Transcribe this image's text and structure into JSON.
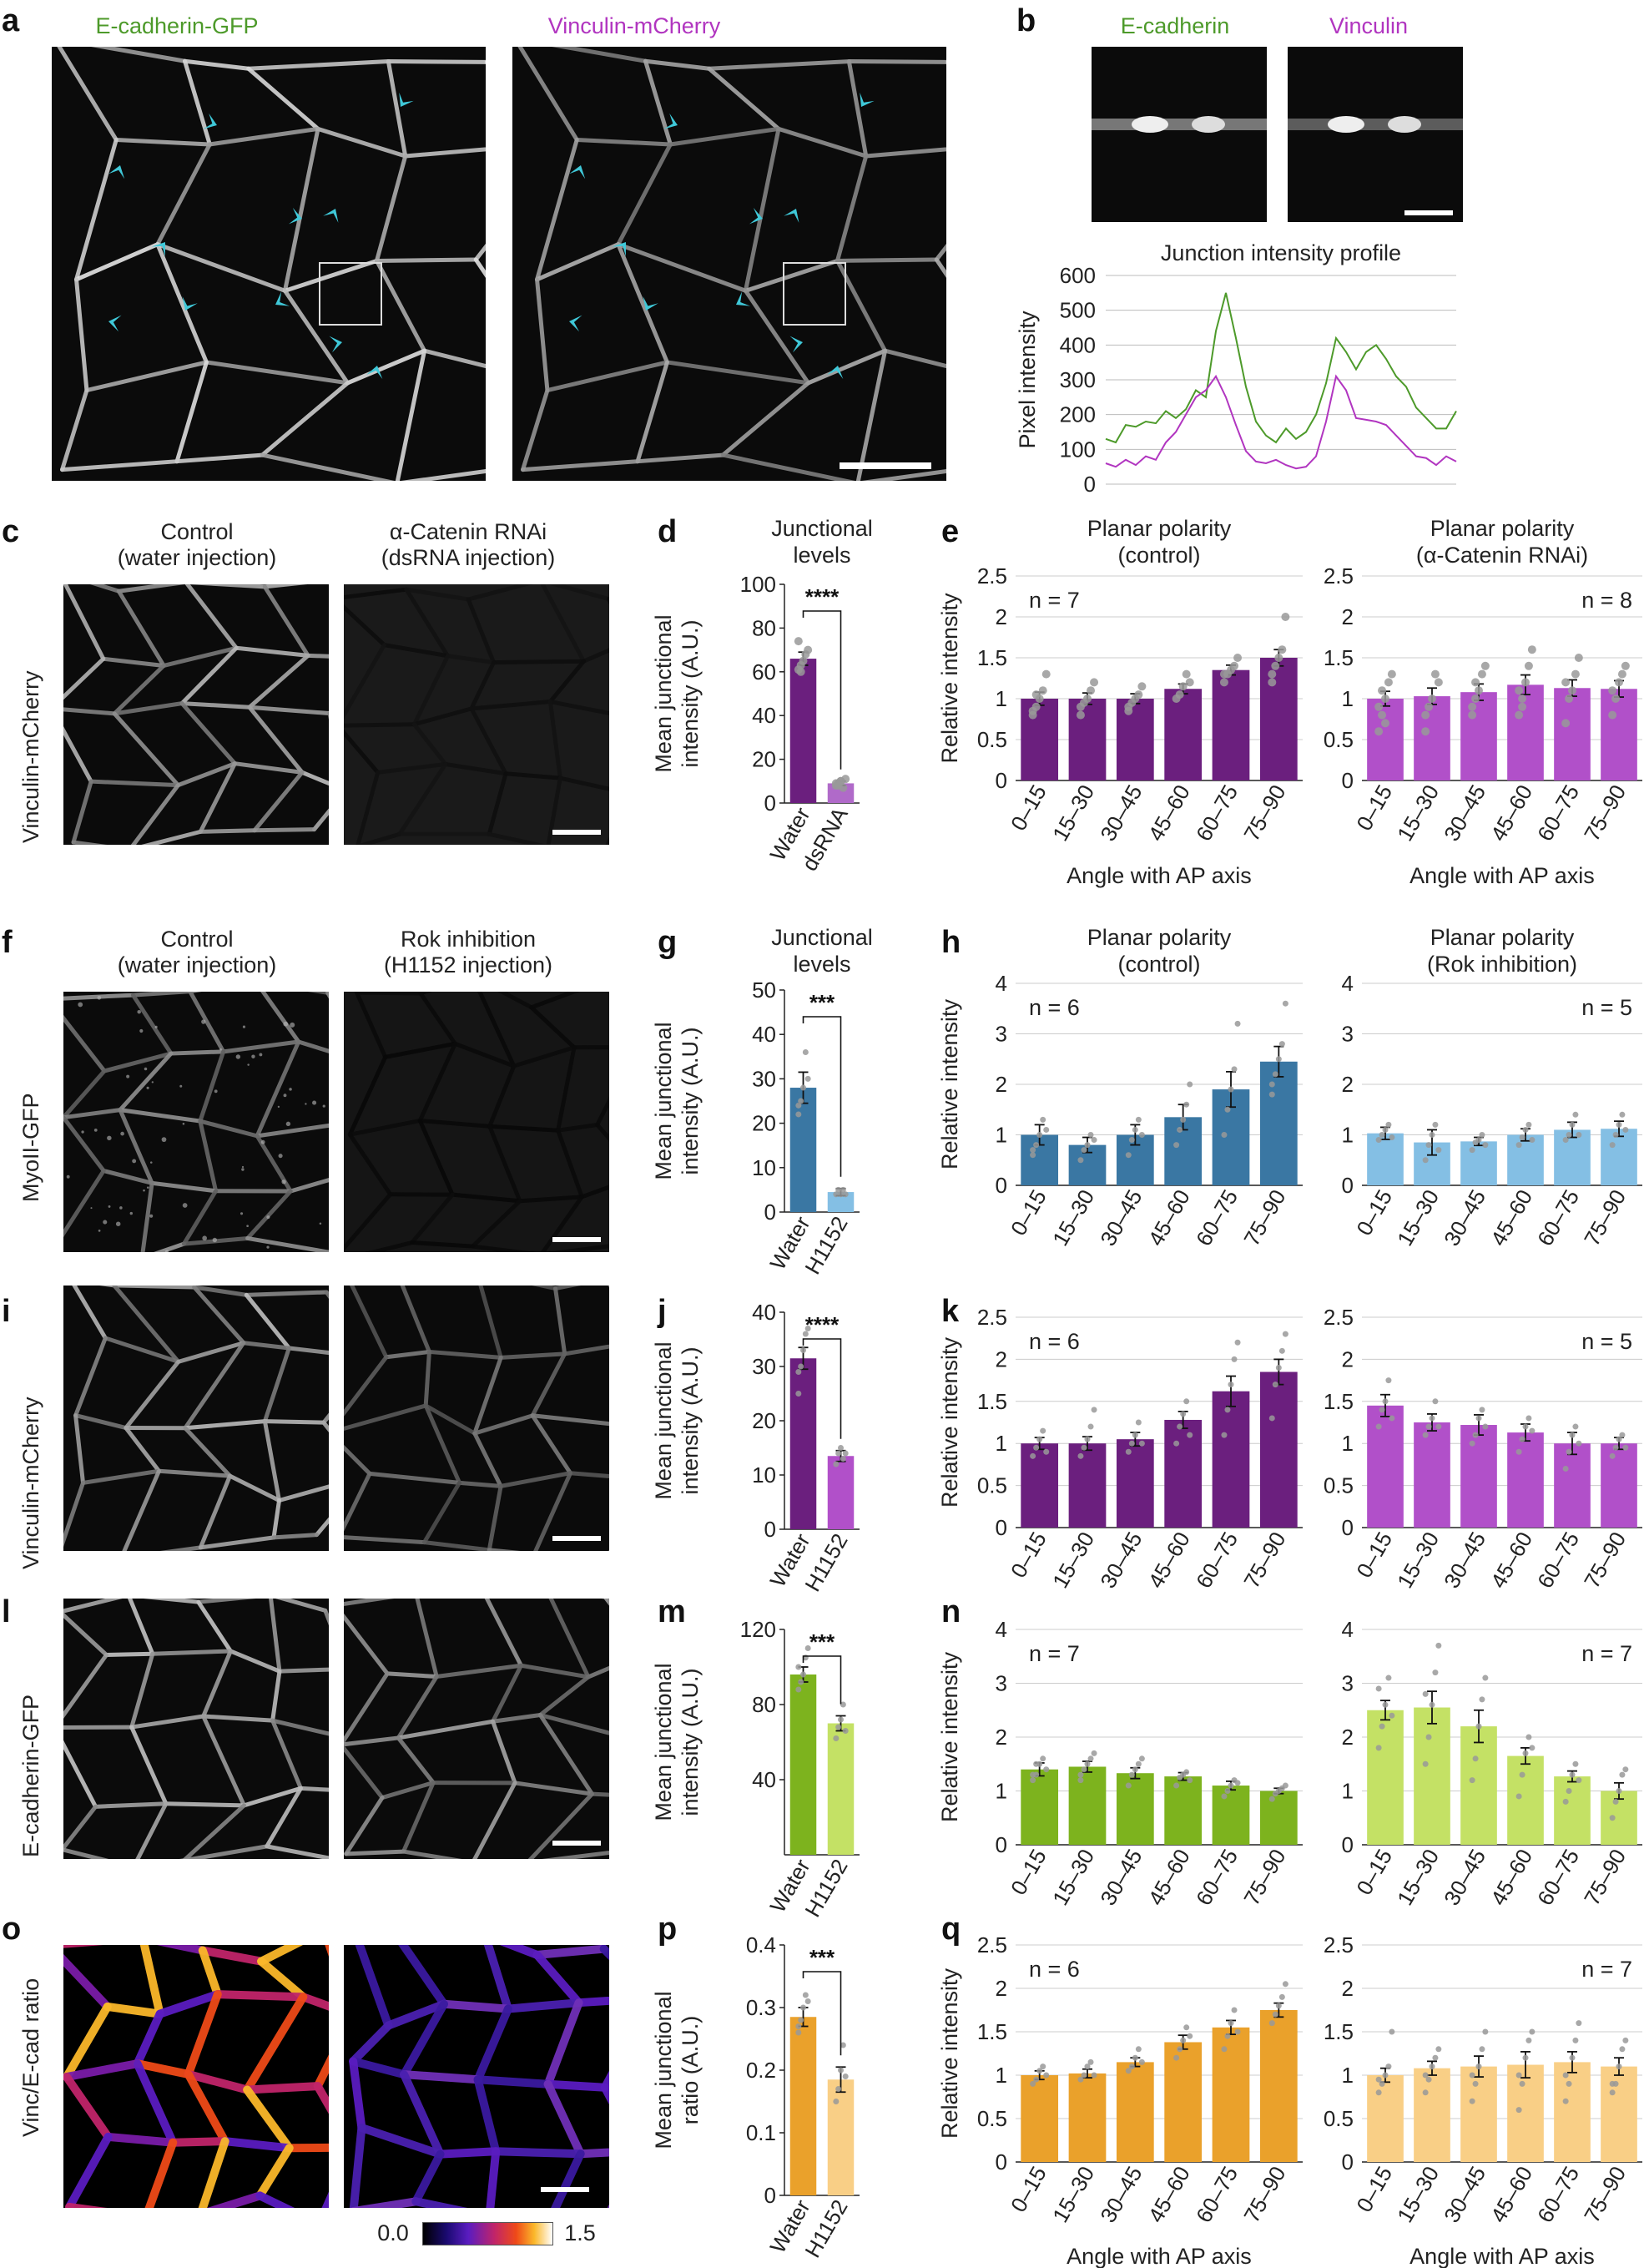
{
  "panel_letters": {
    "a": "a",
    "b": "b",
    "c": "c",
    "d": "d",
    "e": "e",
    "f": "f",
    "g": "g",
    "h": "h",
    "i": "i",
    "j": "j",
    "k": "k",
    "l": "l",
    "m": "m",
    "n": "n",
    "o": "o",
    "p": "p",
    "q": "q"
  },
  "labels": {
    "ecad_gfp": "E-cadherin-GFP",
    "vinc_mcherry": "Vinculin-mCherry",
    "ecad": "E-cadherin",
    "vinc": "Vinculin",
    "control_water": "Control\n(water injection)",
    "acat_rnai": "α-Catenin RNAi\n(dsRNA injection)",
    "rok_inhib": "Rok inhibition\n(H1152 injection)",
    "myoII_gfp": "MyoII-GFP",
    "vinc_ecad_ratio": "Vinc/E-cad ratio",
    "colorbar_min": "0.0",
    "colorbar_max": "1.5"
  },
  "colors": {
    "ecad": "#4d9a2a",
    "vinc": "#b135c0",
    "cyan": "#3fc8d8"
  },
  "chart_data": {
    "b": {
      "type": "line",
      "title": "Junction intensity profile",
      "ylabel": "Pixel intensity",
      "ylim": [
        0,
        600
      ],
      "yticks": [
        0,
        100,
        200,
        300,
        400,
        500,
        600
      ],
      "series": [
        {
          "name": "E-cadherin",
          "color": "#4d9a2a",
          "values": [
            130,
            120,
            170,
            165,
            180,
            175,
            210,
            190,
            215,
            270,
            250,
            440,
            550,
            420,
            280,
            180,
            140,
            120,
            160,
            130,
            150,
            200,
            290,
            420,
            380,
            330,
            380,
            400,
            360,
            310,
            280,
            220,
            190,
            160,
            160,
            210
          ]
        },
        {
          "name": "Vinculin",
          "color": "#b135c0",
          "values": [
            60,
            50,
            70,
            55,
            80,
            70,
            120,
            150,
            200,
            250,
            270,
            310,
            250,
            170,
            95,
            65,
            60,
            70,
            55,
            45,
            50,
            80,
            180,
            310,
            270,
            190,
            185,
            180,
            170,
            140,
            110,
            80,
            75,
            55,
            80,
            65
          ]
        }
      ]
    },
    "d": {
      "type": "bar",
      "title": "Junctional\nlevels",
      "ylabel": "Mean junctional\nintensity (A.U.)",
      "categories": [
        "Water",
        "dsRNA"
      ],
      "values": [
        66,
        9
      ],
      "errors": [
        3,
        1
      ],
      "colors": [
        "#6b1f7e",
        "#b06ac9"
      ],
      "ylim": [
        0,
        100
      ],
      "yticks": [
        0,
        20,
        40,
        60,
        80,
        100
      ],
      "sig": "****",
      "points": [
        [
          61,
          63,
          65,
          68,
          70,
          74,
          60
        ],
        [
          8,
          9,
          10,
          7,
          11,
          9,
          8,
          10
        ]
      ]
    },
    "g": {
      "type": "bar",
      "title": "Junctional\nlevels",
      "ylabel": "Mean junctional\nintensity (A.U.)",
      "categories": [
        "Water",
        "H1152"
      ],
      "values": [
        28,
        4.5
      ],
      "errors": [
        3.5,
        0.8
      ],
      "colors": [
        "#3a77a3",
        "#84bfe4"
      ],
      "ylim": [
        0,
        50
      ],
      "yticks": [
        0,
        10,
        20,
        30,
        40,
        50
      ],
      "sig": "***",
      "points": [
        [
          22,
          25,
          28,
          36,
          30,
          24
        ],
        [
          4,
          5,
          4,
          5,
          4
        ]
      ]
    },
    "j": {
      "type": "bar",
      "ylabel": "Mean junctional\nintensity (A.U.)",
      "categories": [
        "Water",
        "H1152"
      ],
      "values": [
        31.5,
        13.5
      ],
      "errors": [
        2,
        1
      ],
      "colors": [
        "#6b1f7e",
        "#b150c9"
      ],
      "ylim": [
        0,
        40
      ],
      "yticks": [
        0,
        10,
        20,
        30,
        40
      ],
      "sig": "****",
      "points": [
        [
          25,
          30,
          33,
          36,
          37,
          29
        ],
        [
          12,
          14,
          15,
          13,
          14
        ]
      ]
    },
    "m": {
      "type": "bar",
      "ylabel": "Mean junctional\nintensity (A.U.)",
      "categories": [
        "Water",
        "H1152"
      ],
      "values": [
        96,
        70
      ],
      "errors": [
        4,
        4
      ],
      "colors": [
        "#7db31e",
        "#c4e165"
      ],
      "ylim": [
        0,
        120
      ],
      "yticks": [
        40,
        80,
        120
      ],
      "sig": "***",
      "points": [
        [
          88,
          92,
          96,
          105,
          110,
          100
        ],
        [
          62,
          68,
          72,
          80,
          66
        ]
      ]
    },
    "p": {
      "type": "bar",
      "ylabel": "Mean junctional\nratio (A.U.)",
      "categories": [
        "Water",
        "H1152"
      ],
      "values": [
        0.285,
        0.185
      ],
      "errors": [
        0.015,
        0.02
      ],
      "colors": [
        "#eaa12b",
        "#f9cf86"
      ],
      "ylim": [
        0,
        0.4
      ],
      "yticks": [
        0,
        0.1,
        0.2,
        0.3,
        0.4
      ],
      "sig": "***",
      "points": [
        [
          0.26,
          0.28,
          0.3,
          0.32,
          0.31,
          0.27
        ],
        [
          0.15,
          0.17,
          0.2,
          0.24,
          0.19
        ]
      ]
    },
    "e_ctrl": {
      "type": "bar",
      "title": "Planar polarity\n(control)",
      "ylabel": "Relative intensity",
      "n": "n = 7",
      "categories": [
        "0–15",
        "15–30",
        "30–45",
        "45–60",
        "60–75",
        "75–90"
      ],
      "values": [
        1.0,
        1.0,
        1.0,
        1.12,
        1.35,
        1.5
      ],
      "errors": [
        0.08,
        0.07,
        0.06,
        0.06,
        0.06,
        0.1
      ],
      "color": "#6b1f7e",
      "ylim": [
        0,
        2.5
      ],
      "yticks": [
        0,
        0.5,
        1,
        1.5,
        2,
        2.5
      ],
      "points": [
        [
          0.8,
          0.9,
          1.0,
          1.1,
          1.3,
          0.85,
          1.05
        ],
        [
          0.8,
          0.95,
          1.0,
          1.1,
          1.2,
          0.9
        ],
        [
          0.85,
          0.95,
          1.0,
          1.05,
          1.15,
          0.9
        ],
        [
          1.0,
          1.05,
          1.15,
          1.3,
          1.2
        ],
        [
          1.2,
          1.3,
          1.35,
          1.4,
          1.5,
          1.3
        ],
        [
          1.2,
          1.4,
          1.5,
          1.6,
          2.0,
          1.3
        ]
      ]
    },
    "e_rnai": {
      "type": "bar",
      "title": "Planar polarity\n(α-Catenin RNAi)",
      "n": "n =  8",
      "categories": [
        "0–15",
        "15–30",
        "30–45",
        "45–60",
        "60–75",
        "75–90"
      ],
      "values": [
        1.0,
        1.03,
        1.08,
        1.17,
        1.13,
        1.12
      ],
      "errors": [
        0.09,
        0.1,
        0.1,
        0.12,
        0.1,
        0.1
      ],
      "color": "#b150c9",
      "ylim": [
        0,
        2.5
      ],
      "yticks": [
        0,
        0.5,
        1,
        1.5,
        2,
        2.5
      ],
      "points": [
        [
          0.6,
          0.8,
          1.0,
          1.2,
          1.3,
          0.9,
          1.1,
          0.7
        ],
        [
          0.6,
          0.9,
          1.0,
          1.3,
          1.2,
          0.8
        ],
        [
          0.8,
          1.0,
          1.1,
          1.3,
          1.4,
          0.9,
          1.2
        ],
        [
          0.8,
          1.0,
          1.2,
          1.4,
          1.6,
          1.1,
          0.9
        ],
        [
          0.7,
          1.0,
          1.1,
          1.3,
          1.5,
          1.2
        ],
        [
          0.8,
          1.0,
          1.2,
          1.3,
          1.4,
          1.1
        ]
      ]
    },
    "h_ctrl": {
      "type": "bar",
      "title": "Planar polarity\n(control)",
      "ylabel": "Relative intensity",
      "n": "n = 6",
      "categories": [
        "0–15",
        "15–30",
        "30–45",
        "45–60",
        "60–75",
        "75–90"
      ],
      "values": [
        1.0,
        0.8,
        1.0,
        1.35,
        1.9,
        2.45
      ],
      "errors": [
        0.2,
        0.15,
        0.2,
        0.25,
        0.35,
        0.3
      ],
      "color": "#3a77a3",
      "ylim": [
        0,
        4
      ],
      "yticks": [
        0,
        1,
        2,
        3,
        4
      ],
      "points": [
        [
          0.6,
          0.8,
          1.0,
          1.3,
          1.1,
          0.7
        ],
        [
          0.5,
          0.7,
          0.8,
          1.0,
          0.9
        ],
        [
          0.6,
          0.9,
          1.1,
          1.3,
          1.0
        ],
        [
          0.8,
          1.1,
          1.3,
          1.6,
          2.0
        ],
        [
          1.0,
          1.5,
          1.9,
          2.3,
          3.2
        ],
        [
          1.8,
          2.2,
          2.5,
          2.8,
          3.6,
          2.0
        ]
      ]
    },
    "h_rok": {
      "type": "bar",
      "title": "Planar polarity\n(Rok inhibition)",
      "n": "n = 5",
      "categories": [
        "0–15",
        "15–30",
        "30–45",
        "45–60",
        "60–75",
        "75–90"
      ],
      "values": [
        1.03,
        0.85,
        0.87,
        1.0,
        1.1,
        1.12
      ],
      "errors": [
        0.12,
        0.25,
        0.08,
        0.12,
        0.15,
        0.15
      ],
      "color": "#84bfe4",
      "ylim": [
        0,
        4
      ],
      "yticks": [
        0,
        1,
        2,
        3,
        4
      ],
      "points": [
        [
          0.9,
          1.0,
          1.1,
          1.2,
          0.95
        ],
        [
          0.5,
          0.8,
          1.0,
          1.2,
          0.7
        ],
        [
          0.7,
          0.85,
          0.9,
          1.0,
          0.8
        ],
        [
          0.8,
          0.95,
          1.1,
          1.2,
          0.9
        ],
        [
          0.9,
          1.0,
          1.2,
          1.4,
          1.0
        ],
        [
          0.8,
          1.0,
          1.2,
          1.4,
          1.1
        ]
      ]
    },
    "k_ctrl": {
      "type": "bar",
      "ylabel": "Relative intensity",
      "n": "n = 6",
      "categories": [
        "0–15",
        "15–30",
        "30–45",
        "45–60",
        "60–75",
        "75–90"
      ],
      "values": [
        1.0,
        1.0,
        1.05,
        1.28,
        1.62,
        1.85
      ],
      "errors": [
        0.07,
        0.08,
        0.08,
        0.1,
        0.18,
        0.15
      ],
      "color": "#6b1f7e",
      "ylim": [
        0,
        2.5
      ],
      "yticks": [
        0,
        0.5,
        1,
        1.5,
        2,
        2.5
      ],
      "points": [
        [
          0.85,
          0.95,
          1.05,
          1.15,
          0.9
        ],
        [
          0.85,
          0.95,
          1.05,
          1.2,
          1.4
        ],
        [
          0.9,
          1.0,
          1.1,
          1.25,
          1.0
        ],
        [
          1.0,
          1.2,
          1.35,
          1.5,
          1.1
        ],
        [
          1.1,
          1.4,
          1.7,
          2.0,
          2.2
        ],
        [
          1.3,
          1.7,
          1.9,
          2.1,
          2.3
        ]
      ]
    },
    "k_rok": {
      "type": "bar",
      "n": "n = 5",
      "categories": [
        "0–15",
        "15–30",
        "30–45",
        "45–60",
        "60–75",
        "75–90"
      ],
      "values": [
        1.45,
        1.25,
        1.22,
        1.13,
        1.0,
        1.0
      ],
      "errors": [
        0.13,
        0.1,
        0.12,
        0.1,
        0.13,
        0.07
      ],
      "color": "#b150c9",
      "ylim": [
        0,
        2.5
      ],
      "yticks": [
        0,
        0.5,
        1,
        1.5,
        2,
        2.5
      ],
      "points": [
        [
          1.2,
          1.4,
          1.5,
          1.75,
          1.3
        ],
        [
          1.1,
          1.2,
          1.3,
          1.5,
          1.2
        ],
        [
          1.0,
          1.1,
          1.3,
          1.4,
          1.2
        ],
        [
          0.9,
          1.05,
          1.2,
          1.3,
          1.15
        ],
        [
          0.7,
          0.9,
          1.1,
          1.2,
          1.0
        ],
        [
          0.85,
          0.95,
          1.05,
          1.1,
          0.95
        ]
      ]
    },
    "n_ctrl": {
      "type": "bar",
      "ylabel": "Relative intensity",
      "n": "n = 7",
      "categories": [
        "0–15",
        "15–30",
        "30–45",
        "45–60",
        "60–75",
        "75–90"
      ],
      "values": [
        1.4,
        1.45,
        1.33,
        1.27,
        1.1,
        1.0
      ],
      "errors": [
        0.12,
        0.1,
        0.1,
        0.07,
        0.08,
        0.05
      ],
      "color": "#7db31e",
      "ylim": [
        0,
        4
      ],
      "yticks": [
        0,
        1,
        2,
        3,
        4
      ],
      "points": [
        [
          1.2,
          1.3,
          1.5,
          1.6,
          1.4,
          1.3,
          1.5
        ],
        [
          1.2,
          1.4,
          1.5,
          1.6,
          1.7,
          1.3
        ],
        [
          1.1,
          1.3,
          1.4,
          1.5,
          1.6
        ],
        [
          1.1,
          1.25,
          1.3,
          1.35,
          1.2
        ],
        [
          0.9,
          1.0,
          1.1,
          1.2,
          1.15
        ],
        [
          0.85,
          0.95,
          1.0,
          1.05,
          1.1
        ]
      ]
    },
    "n_rok": {
      "type": "bar",
      "n": "n = 7",
      "categories": [
        "0–15",
        "15–30",
        "30–45",
        "45–60",
        "60–75",
        "75–90"
      ],
      "values": [
        2.5,
        2.55,
        2.2,
        1.65,
        1.27,
        1.0
      ],
      "errors": [
        0.18,
        0.3,
        0.3,
        0.15,
        0.1,
        0.15
      ],
      "color": "#c4e165",
      "ylim": [
        0,
        4
      ],
      "yticks": [
        0,
        1,
        2,
        3,
        4
      ],
      "points": [
        [
          1.8,
          2.2,
          2.6,
          3.1,
          2.4,
          2.9
        ],
        [
          1.5,
          2.0,
          2.6,
          3.2,
          3.7,
          2.8
        ],
        [
          1.2,
          1.6,
          2.2,
          2.7,
          3.1
        ],
        [
          0.9,
          1.3,
          1.7,
          2.0,
          1.8
        ],
        [
          0.8,
          1.0,
          1.3,
          1.5,
          1.2
        ],
        [
          0.5,
          0.8,
          1.0,
          1.3,
          1.4
        ]
      ]
    },
    "q_ctrl": {
      "type": "bar",
      "ylabel": "Relative intensity",
      "n": "n = 6",
      "categories": [
        "0–15",
        "15–30",
        "30–45",
        "45–60",
        "60–75",
        "75–90"
      ],
      "values": [
        1.0,
        1.02,
        1.15,
        1.38,
        1.55,
        1.75
      ],
      "errors": [
        0.05,
        0.05,
        0.05,
        0.08,
        0.08,
        0.08
      ],
      "color": "#eaa12b",
      "ylim": [
        0,
        2.5
      ],
      "yticks": [
        0,
        0.5,
        1,
        1.5,
        2,
        2.5
      ],
      "points": [
        [
          0.9,
          0.95,
          1.05,
          1.1,
          1.0
        ],
        [
          0.95,
          1.0,
          1.1,
          1.15,
          1.0
        ],
        [
          1.05,
          1.1,
          1.2,
          1.3,
          1.15
        ],
        [
          1.2,
          1.3,
          1.4,
          1.55,
          1.45
        ],
        [
          1.3,
          1.45,
          1.6,
          1.75,
          1.5
        ],
        [
          1.6,
          1.7,
          1.8,
          1.9,
          2.05
        ]
      ]
    },
    "q_rok": {
      "type": "bar",
      "n": "n = 7",
      "categories": [
        "0–15",
        "15–30",
        "30–45",
        "45–60",
        "60–75",
        "75–90"
      ],
      "values": [
        1.0,
        1.08,
        1.1,
        1.12,
        1.15,
        1.1
      ],
      "errors": [
        0.08,
        0.08,
        0.12,
        0.15,
        0.12,
        0.1
      ],
      "color": "#f9cf86",
      "ylim": [
        0,
        2.5
      ],
      "yticks": [
        0,
        0.5,
        1,
        1.5,
        2,
        2.5
      ],
      "points": [
        [
          0.8,
          0.9,
          1.0,
          1.1,
          1.5,
          0.95
        ],
        [
          0.8,
          0.95,
          1.1,
          1.2,
          1.3,
          1.0
        ],
        [
          0.7,
          0.9,
          1.1,
          1.3,
          1.5,
          1.0
        ],
        [
          0.6,
          0.9,
          1.2,
          1.4,
          1.5,
          1.0
        ],
        [
          0.7,
          0.9,
          1.2,
          1.4,
          1.6,
          1.0
        ],
        [
          0.8,
          0.9,
          1.1,
          1.3,
          1.4,
          0.9
        ]
      ]
    },
    "axis_xlabel": "Angle with AP axis"
  }
}
